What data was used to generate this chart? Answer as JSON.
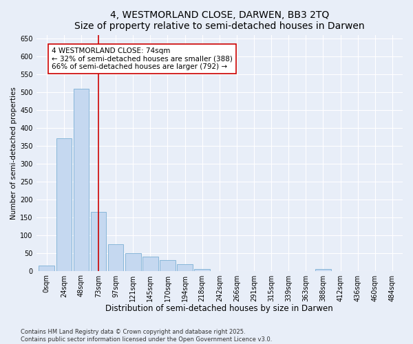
{
  "title": "4, WESTMORLAND CLOSE, DARWEN, BB3 2TQ",
  "subtitle": "Size of property relative to semi-detached houses in Darwen",
  "xlabel": "Distribution of semi-detached houses by size in Darwen",
  "ylabel": "Number of semi-detached properties",
  "categories": [
    "0sqm",
    "24sqm",
    "48sqm",
    "73sqm",
    "97sqm",
    "121sqm",
    "145sqm",
    "170sqm",
    "194sqm",
    "218sqm",
    "242sqm",
    "266sqm",
    "291sqm",
    "315sqm",
    "339sqm",
    "363sqm",
    "388sqm",
    "412sqm",
    "436sqm",
    "460sqm",
    "484sqm"
  ],
  "values": [
    15,
    370,
    510,
    165,
    75,
    50,
    40,
    30,
    18,
    5,
    0,
    0,
    0,
    0,
    0,
    0,
    5,
    0,
    0,
    0,
    0
  ],
  "bar_color": "#c5d8f0",
  "bar_edge_color": "#7bafd4",
  "background_color": "#e8eef8",
  "grid_color": "#ffffff",
  "property_label": "4 WESTMORLAND CLOSE: 74sqm",
  "pct_smaller": 32,
  "pct_smaller_count": 388,
  "pct_larger": 66,
  "pct_larger_count": 792,
  "vline_color": "#cc0000",
  "box_edge_color": "#cc0000",
  "annotation_fontsize": 7.5,
  "title_fontsize": 10,
  "xlabel_fontsize": 8.5,
  "ylabel_fontsize": 7.5,
  "tick_fontsize": 7,
  "footer_text": "Contains HM Land Registry data © Crown copyright and database right 2025.\nContains public sector information licensed under the Open Government Licence v3.0.",
  "ylim": [
    0,
    660
  ],
  "yticks": [
    0,
    50,
    100,
    150,
    200,
    250,
    300,
    350,
    400,
    450,
    500,
    550,
    600,
    650
  ]
}
